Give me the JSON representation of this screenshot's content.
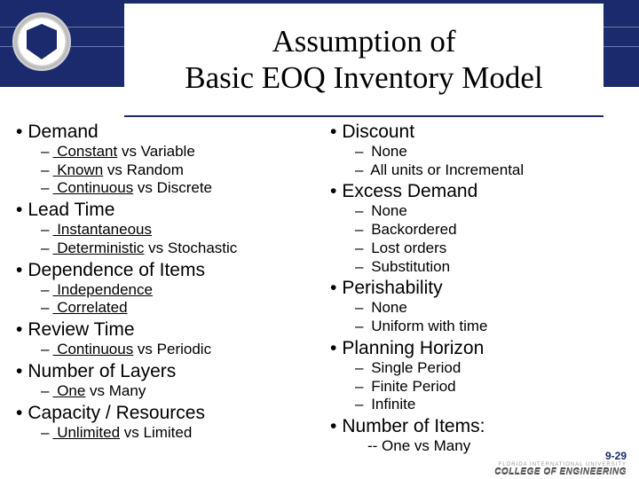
{
  "slide": {
    "title_line1": "Assumption of",
    "title_line2": "Basic EOQ Inventory Model",
    "title_color": "#000000",
    "band_color": "#1a2a6c",
    "title_fontsize": 35
  },
  "left_col": [
    {
      "label": "Demand",
      "subs": [
        {
          "a": "Constant",
          "vs": " vs Variable"
        },
        {
          "a": "Known",
          "vs": " vs Random"
        },
        {
          "a": "Continuous",
          "vs": " vs Discrete"
        }
      ]
    },
    {
      "label": "Lead Time",
      "subs": [
        {
          "a": "Instantaneous",
          "vs": ""
        },
        {
          "a": "Deterministic",
          "vs": " vs Stochastic"
        }
      ]
    },
    {
      "label": "Dependence of Items",
      "subs": [
        {
          "a": "Independence",
          "vs": ""
        },
        {
          "a": "Correlated",
          "vs": ""
        }
      ]
    },
    {
      "label": "Review Time",
      "subs": [
        {
          "a": "Continuous",
          "vs": " vs Periodic"
        }
      ]
    },
    {
      "label": "Number of Layers",
      "subs": [
        {
          "a": "One",
          "vs": " vs Many"
        }
      ]
    },
    {
      "label": "Capacity / Resources",
      "subs": [
        {
          "a": "Unlimited",
          "vs": " vs Limited"
        }
      ]
    }
  ],
  "right_col": [
    {
      "label": "Discount",
      "subs": [
        {
          "a": "None",
          "vs": ""
        },
        {
          "a": "All units or Incremental",
          "vs": ""
        }
      ]
    },
    {
      "label": "Excess Demand",
      "subs": [
        {
          "a": "None",
          "vs": ""
        },
        {
          "a": "Backordered",
          "vs": ""
        },
        {
          "a": "Lost orders",
          "vs": ""
        },
        {
          "a": "Substitution",
          "vs": ""
        }
      ]
    },
    {
      "label": "Perishability",
      "subs": [
        {
          "a": "None",
          "vs": ""
        },
        {
          "a": "Uniform with time",
          "vs": ""
        }
      ]
    },
    {
      "label": "Planning Horizon",
      "subs": [
        {
          "a": "Single Period",
          "vs": ""
        },
        {
          "a": "Finite Period",
          "vs": ""
        },
        {
          "a": "Infinite",
          "vs": ""
        }
      ]
    },
    {
      "label": "Number of Items:",
      "subs": [],
      "extra": "-- One vs Many"
    }
  ],
  "footer": {
    "page": "9-29",
    "fiu": "FLORIDA INTERNATIONAL UNIVERSITY",
    "college": "COLLEGE OF ENGINEERING"
  },
  "style": {
    "l1_fontsize": 21,
    "l2_fontsize": 17,
    "text_color": "#000000",
    "bg_color": "#ffffff"
  }
}
